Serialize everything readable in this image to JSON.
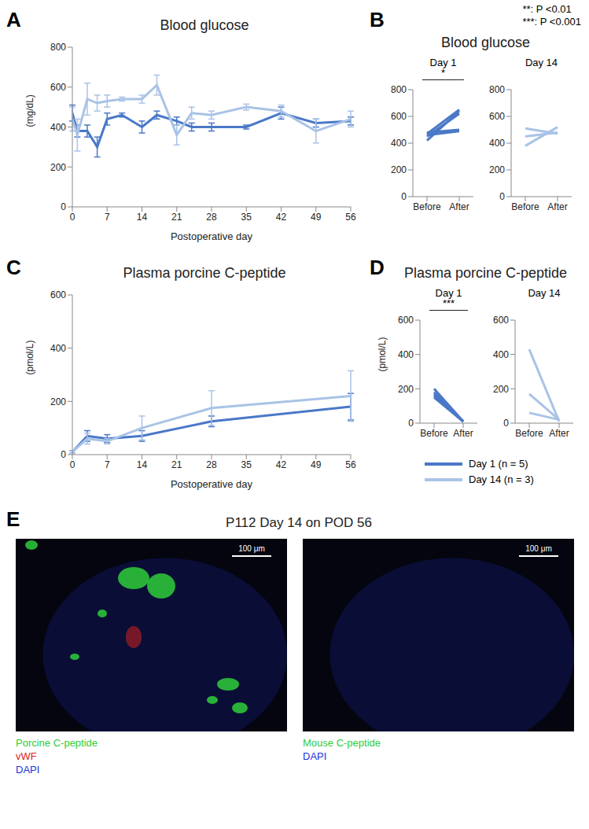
{
  "significance_key": [
    "**: P <0.01",
    "***: P <0.001"
  ],
  "chart_data": [
    {
      "panel": "A",
      "type": "line",
      "title": "Blood glucose",
      "xlabel": "Postoperative day",
      "ylabel": "(mg/dL)",
      "x": [
        0,
        1,
        3,
        5,
        7,
        10,
        14,
        17,
        21,
        24,
        28,
        35,
        42,
        49,
        56
      ],
      "xlim": [
        0,
        56
      ],
      "xticks": [
        0,
        7,
        14,
        21,
        28,
        35,
        42,
        49,
        56
      ],
      "ylim": [
        0,
        800
      ],
      "yticks": [
        0,
        200,
        400,
        600,
        800
      ],
      "grid": false,
      "series": [
        {
          "color": "#4a78c8",
          "values": [
            470,
            380,
            380,
            300,
            440,
            460,
            400,
            460,
            430,
            400,
            400,
            400,
            470,
            420,
            430
          ],
          "error": [
            40,
            30,
            30,
            50,
            30,
            10,
            30,
            20,
            20,
            20,
            20,
            10,
            30,
            20,
            20
          ]
        },
        {
          "color": "#a9c3e6",
          "values": [
            440,
            360,
            540,
            520,
            530,
            540,
            540,
            610,
            360,
            470,
            460,
            500,
            480,
            380,
            440
          ],
          "error": [
            60,
            80,
            80,
            40,
            30,
            10,
            20,
            50,
            50,
            30,
            20,
            15,
            30,
            60,
            40
          ]
        }
      ]
    },
    {
      "panel": "B",
      "type": "line",
      "title": "Blood glucose",
      "categories": [
        "Before",
        "After"
      ],
      "ylim": [
        0,
        800
      ],
      "yticks": [
        0,
        200,
        400,
        600,
        800
      ],
      "subplots": [
        {
          "subtitle": "Day 1",
          "annotation": "*",
          "color": "#4a78c8",
          "series": [
            {
              "values": [
                420,
                640
              ]
            },
            {
              "values": [
                450,
                620
              ]
            },
            {
              "values": [
                470,
                650
              ]
            },
            {
              "values": [
                480,
                500
              ]
            },
            {
              "values": [
                460,
                490
              ]
            }
          ]
        },
        {
          "subtitle": "Day 14",
          "color": "#a9c3e6",
          "series": [
            {
              "values": [
                380,
                520
              ]
            },
            {
              "values": [
                450,
                480
              ]
            },
            {
              "values": [
                510,
                470
              ]
            }
          ]
        }
      ]
    },
    {
      "panel": "C",
      "type": "line",
      "title": "Plasma porcine C-peptide",
      "xlabel": "Postoperative day",
      "ylabel": "(pmol/L)",
      "x": [
        0,
        3,
        7,
        14,
        28,
        56
      ],
      "xlim": [
        0,
        56
      ],
      "xticks": [
        0,
        7,
        14,
        21,
        28,
        35,
        42,
        49,
        56
      ],
      "ylim": [
        0,
        600
      ],
      "yticks": [
        0,
        200,
        400,
        600
      ],
      "grid": false,
      "series": [
        {
          "color": "#4a78c8",
          "values": [
            10,
            70,
            60,
            70,
            125,
            180
          ],
          "error": [
            5,
            20,
            15,
            20,
            20,
            50
          ]
        },
        {
          "color": "#a9c3e6",
          "values": [
            10,
            60,
            50,
            100,
            175,
            220
          ],
          "error": [
            5,
            20,
            10,
            45,
            65,
            95
          ]
        }
      ]
    },
    {
      "panel": "D",
      "type": "line",
      "title": "Plasma porcine C-peptide",
      "ylabel": "(pmol/L)",
      "categories": [
        "Before",
        "After"
      ],
      "ylim": [
        0,
        600
      ],
      "yticks": [
        0,
        200,
        400,
        600
      ],
      "legend": "bottom",
      "subplots": [
        {
          "subtitle": "Day 1",
          "annotation": "***",
          "name": "Day 1 (n = 5)",
          "color": "#4a78c8",
          "series": [
            {
              "values": [
                200,
                10
              ]
            },
            {
              "values": [
                180,
                10
              ]
            },
            {
              "values": [
                170,
                10
              ]
            },
            {
              "values": [
                160,
                10
              ]
            },
            {
              "values": [
                150,
                10
              ]
            }
          ]
        },
        {
          "subtitle": "Day 14",
          "name": "Day 14 (n = 3)",
          "color": "#a9c3e6",
          "series": [
            {
              "values": [
                430,
                10
              ]
            },
            {
              "values": [
                170,
                20
              ]
            },
            {
              "values": [
                60,
                20
              ]
            }
          ]
        }
      ]
    }
  ],
  "panel_E": {
    "panel": "E",
    "title": "P112 Day 14 on POD 56",
    "images": [
      {
        "scale_bar": "100 μm",
        "stains": [
          {
            "name": "Porcine C-peptide",
            "color": "#2fcc3a"
          },
          {
            "name": "vWF",
            "color": "#e02020"
          },
          {
            "name": "DAPI",
            "color": "#2233dd"
          }
        ]
      },
      {
        "scale_bar": "100 μm",
        "stains": [
          {
            "name": "Mouse C-peptide",
            "color": "#2fcc3a"
          },
          {
            "name": "DAPI",
            "color": "#2233dd"
          }
        ]
      }
    ]
  }
}
